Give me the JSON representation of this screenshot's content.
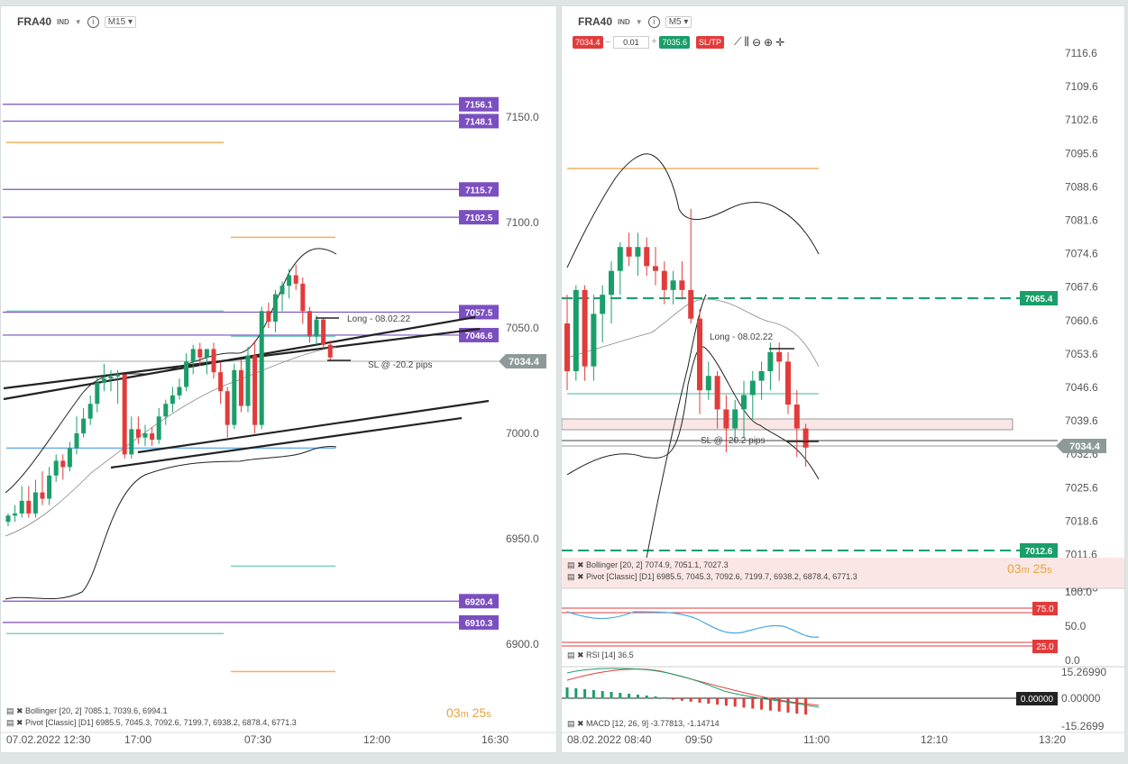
{
  "left": {
    "symbol": "FRA40",
    "type_badge": "IND",
    "info_icon": "info-icon",
    "timeframe": "M15",
    "y_ticks": [
      "7150.0",
      "7100.0",
      "7050.0",
      "7000.0",
      "6950.0",
      "6900.0"
    ],
    "x_ticks": [
      "07.02.2022 12:30",
      "17:00",
      "07:30",
      "12:00",
      "16:30"
    ],
    "level_tags": [
      "7156.1",
      "7148.1",
      "7115.7",
      "7102.5",
      "7057.5",
      "7046.6",
      "6920.4",
      "6910.3"
    ],
    "price_tag": "7034.4",
    "long_label": "Long - 08.02.22",
    "sl_label": "SL @ -20.2 pips",
    "legend": [
      "Bollinger [20, 2] 7085.1, 7039.6, 6994.1",
      "Pivot [Classic] [D1] 6985.5, 7045.3, 7092.6, 7199.7, 6938.2, 6878.4, 6771.3"
    ],
    "timer": {
      "min": "03",
      "m": "m",
      "sec": "25",
      "s": "s"
    }
  },
  "right": {
    "symbol": "FRA40",
    "type_badge": "IND",
    "timeframe": "M5",
    "sell_price": "7034.4",
    "lot": "0.01",
    "buy_price": "7035.6",
    "sltp": "SL/TP",
    "minus": "–",
    "plus": "+",
    "y_ticks": [
      "7116.6",
      "7109.6",
      "7102.6",
      "7095.6",
      "7088.6",
      "7081.6",
      "7074.6",
      "7067.6",
      "7060.6",
      "7053.6",
      "7046.6",
      "7039.6",
      "7032.6",
      "7025.6",
      "7018.6",
      "7011.6",
      "7004.6"
    ],
    "x_ticks": [
      "08.02.2022 08:40",
      "09:50",
      "11:00",
      "12:10",
      "13:20"
    ],
    "tag_upper": "7065.4",
    "tag_lower": "7012.6",
    "price_tag": "7034.4",
    "hidden_tag": "7035.6",
    "long_label": "Long - 08.02.22",
    "sl_label": "SL @ -20.2 pips",
    "legend": [
      "Bollinger [20, 2] 7074.9, 7051.1, 7027.3",
      "Pivot [Classic] [D1] 6985.5, 7045.3, 7092.6, 7199.7, 6938.2, 6878.4, 6771.3"
    ],
    "timer": {
      "min": "03",
      "m": "m",
      "sec": "25",
      "s": "s"
    },
    "rsi": {
      "label": "RSI [14] 36.5",
      "ticks": [
        "100.0",
        "50.0",
        "0.0"
      ],
      "tag_high": "75.0",
      "tag_low": "25.0"
    },
    "macd": {
      "label": "MACD [12, 26, 9] -3.77813, -1.14714",
      "ticks": [
        "15.26990",
        "0.00000",
        "-15.2699"
      ],
      "tag": "0.00000"
    }
  },
  "colors": {
    "bull": "#1a9e6a",
    "bear": "#e23b3b",
    "pivot": "#7b4fc0",
    "orange": "#f0b060",
    "teal": "#7fd1c0",
    "blue": "#6ab0e8"
  },
  "chart_data": [
    {
      "type": "candlestick",
      "title": "FRA40 M15",
      "ylim": [
        6880,
        7180
      ],
      "x_ticks": [
        "07.02.2022 12:30",
        "17:00",
        "07:30",
        "12:00",
        "16:30"
      ],
      "candles": [
        [
          6958,
          6962,
          6956,
          6961
        ],
        [
          6961,
          6966,
          6958,
          6962
        ],
        [
          6962,
          6975,
          6960,
          6968
        ],
        [
          6968,
          6975,
          6960,
          6962
        ],
        [
          6962,
          6978,
          6960,
          6972
        ],
        [
          6972,
          6982,
          6966,
          6969
        ],
        [
          6969,
          6984,
          6966,
          6980
        ],
        [
          6980,
          6990,
          6977,
          6987
        ],
        [
          6987,
          6990,
          6978,
          6984
        ],
        [
          6984,
          6996,
          6982,
          6993
        ],
        [
          6993,
          7008,
          6990,
          7000
        ],
        [
          7000,
          7012,
          6998,
          7007
        ],
        [
          7007,
          7018,
          7004,
          7014
        ],
        [
          7014,
          7027,
          7010,
          7024
        ],
        [
          7024,
          7033,
          7020,
          7026
        ],
        [
          7026,
          7030,
          7020,
          7027
        ],
        [
          7027,
          7030,
          7014,
          7028
        ],
        [
          7028,
          7028,
          6988,
          6990
        ],
        [
          6990,
          7008,
          6988,
          7002
        ],
        [
          7002,
          7008,
          6995,
          6998
        ],
        [
          6998,
          7004,
          6994,
          7000
        ],
        [
          7000,
          7003,
          6994,
          6997
        ],
        [
          6997,
          7012,
          6995,
          7008
        ],
        [
          7008,
          7016,
          7004,
          7014
        ],
        [
          7014,
          7022,
          7010,
          7018
        ],
        [
          7018,
          7026,
          7016,
          7022
        ],
        [
          7022,
          7038,
          7020,
          7034
        ],
        [
          7034,
          7042,
          7028,
          7040
        ],
        [
          7040,
          7043,
          7032,
          7036
        ],
        [
          7036,
          7040,
          7028,
          7040
        ],
        [
          7040,
          7043,
          7026,
          7029
        ],
        [
          7029,
          7034,
          7014,
          7020
        ],
        [
          7020,
          7022,
          6998,
          7004
        ],
        [
          7004,
          7033,
          7002,
          7030
        ],
        [
          7030,
          7035,
          7010,
          7013
        ],
        [
          7013,
          7041,
          7010,
          7037
        ],
        [
          7037,
          7044,
          7000,
          7004
        ],
        [
          7004,
          7060,
          7002,
          7058
        ],
        [
          7058,
          7062,
          7050,
          7053
        ],
        [
          7053,
          7068,
          7048,
          7066
        ],
        [
          7066,
          7072,
          7058,
          7070
        ],
        [
          7070,
          7078,
          7064,
          7075
        ],
        [
          7075,
          7080,
          7068,
          7071
        ],
        [
          7071,
          7074,
          7052,
          7058
        ],
        [
          7058,
          7060,
          7043,
          7046
        ],
        [
          7046,
          7056,
          7042,
          7054
        ],
        [
          7054,
          7055,
          7040,
          7042
        ],
        [
          7042,
          7044,
          7034,
          7036
        ]
      ],
      "bollinger_mid": [
        6946,
        6948,
        6952,
        6956,
        6960,
        6965,
        6970,
        6975,
        6980,
        6985,
        6992,
        6998,
        7003,
        7008,
        7010,
        7012,
        7014,
        7015,
        7015,
        7016,
        7017,
        7018,
        7020,
        7022,
        7024,
        7026,
        7028,
        7030,
        7032,
        7034,
        7037,
        7040,
        7042,
        7043
      ],
      "levels": [
        7156.1,
        7148.1,
        7115.7,
        7102.5,
        7057.5,
        7046.6,
        6920.4,
        6910.3
      ]
    },
    {
      "type": "candlestick",
      "title": "FRA40 M5",
      "ylim": [
        7001,
        7120
      ],
      "x_ticks": [
        "08.02.2022 08:40",
        "09:50",
        "11:00",
        "12:10",
        "13:20"
      ],
      "candles": [
        [
          7060,
          7066,
          7046,
          7050
        ],
        [
          7050,
          7068,
          7048,
          7067
        ],
        [
          7067,
          7068,
          7048,
          7051
        ],
        [
          7051,
          7066,
          7048,
          7062
        ],
        [
          7062,
          7068,
          7056,
          7066
        ],
        [
          7066,
          7073,
          7060,
          7071
        ],
        [
          7071,
          7077,
          7066,
          7076
        ],
        [
          7076,
          7079,
          7072,
          7074
        ],
        [
          7074,
          7079,
          7070,
          7076
        ],
        [
          7076,
          7078,
          7070,
          7072
        ],
        [
          7072,
          7076,
          7068,
          7071
        ],
        [
          7071,
          7073,
          7064,
          7067
        ],
        [
          7067,
          7071,
          7064,
          7069
        ],
        [
          7069,
          7073,
          7065,
          7067
        ],
        [
          7067,
          7084,
          7060,
          7061
        ],
        [
          7061,
          7063,
          7041,
          7046
        ],
        [
          7046,
          7052,
          7044,
          7049
        ],
        [
          7049,
          7050,
          7038,
          7042
        ],
        [
          7042,
          7045,
          7033,
          7038
        ],
        [
          7038,
          7044,
          7035,
          7042
        ],
        [
          7042,
          7048,
          7036,
          7045
        ],
        [
          7045,
          7050,
          7040,
          7048
        ],
        [
          7048,
          7052,
          7044,
          7050
        ],
        [
          7050,
          7056,
          7046,
          7054
        ],
        [
          7054,
          7056,
          7048,
          7052
        ],
        [
          7052,
          7054,
          7041,
          7043
        ],
        [
          7043,
          7046,
          7032,
          7038
        ],
        [
          7038,
          7039,
          7030,
          7034
        ]
      ],
      "levels": [
        7065.4,
        7012.6
      ],
      "rsi": {
        "value": 36.5,
        "overbought": 75,
        "oversold": 25
      },
      "macd": {
        "macd": -3.77813,
        "signal": -1.14714
      }
    }
  ]
}
